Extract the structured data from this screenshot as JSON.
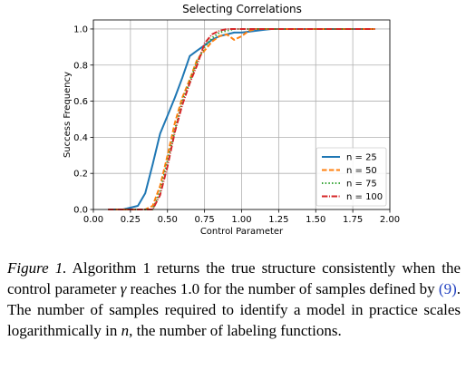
{
  "chart_data": {
    "type": "line",
    "title": "Selecting Correlations",
    "xlabel": "Control Parameter",
    "ylabel": "Success Frequency",
    "xlim": [
      0.0,
      2.0
    ],
    "ylim": [
      0.0,
      1.05
    ],
    "xticks": [
      "0.00",
      "0.25",
      "0.50",
      "0.75",
      "1.00",
      "1.25",
      "1.50",
      "1.75",
      "2.00"
    ],
    "yticks": [
      "0.0",
      "0.2",
      "0.4",
      "0.6",
      "0.8",
      "1.0"
    ],
    "grid": true,
    "legend_position": "lower-right",
    "x": [
      0.1,
      0.2,
      0.3,
      0.35,
      0.4,
      0.45,
      0.5,
      0.55,
      0.6,
      0.65,
      0.7,
      0.75,
      0.8,
      0.85,
      0.9,
      0.95,
      1.0,
      1.05,
      1.1,
      1.15,
      1.2,
      1.25,
      1.3,
      1.4,
      1.5,
      1.6,
      1.7,
      1.8,
      1.9
    ],
    "series": [
      {
        "name": "n = 25",
        "color": "#1f77b4",
        "dash": "solid",
        "values": [
          0.0,
          0.0,
          0.02,
          0.09,
          0.25,
          0.42,
          0.52,
          0.62,
          0.73,
          0.85,
          0.88,
          0.91,
          0.94,
          0.96,
          0.97,
          0.98,
          0.98,
          0.985,
          0.99,
          0.995,
          1.0,
          1.0,
          1.0,
          1.0,
          1.0,
          1.0,
          1.0,
          1.0,
          1.0
        ]
      },
      {
        "name": "n = 50",
        "color": "#ff7f0e",
        "dash": "dashed",
        "values": [
          0.0,
          0.0,
          0.0,
          0.0,
          0.02,
          0.13,
          0.3,
          0.48,
          0.62,
          0.72,
          0.83,
          0.88,
          0.93,
          0.96,
          0.97,
          0.94,
          0.96,
          0.99,
          1.0,
          1.0,
          1.0,
          1.0,
          1.0,
          1.0,
          1.0,
          1.0,
          1.0,
          1.0,
          1.0
        ]
      },
      {
        "name": "n = 75",
        "color": "#2ca02c",
        "dash": "dotted",
        "values": [
          0.0,
          0.0,
          0.0,
          0.0,
          0.0,
          0.1,
          0.27,
          0.44,
          0.6,
          0.71,
          0.82,
          0.9,
          0.95,
          0.98,
          0.99,
          1.0,
          1.0,
          1.0,
          1.0,
          1.0,
          1.0,
          1.0,
          1.0,
          1.0,
          1.0,
          1.0,
          1.0,
          1.0,
          1.0
        ]
      },
      {
        "name": "n = 100",
        "color": "#d62728",
        "dash": "dashdot",
        "values": [
          0.0,
          0.0,
          0.0,
          0.0,
          0.0,
          0.08,
          0.24,
          0.43,
          0.58,
          0.7,
          0.8,
          0.92,
          0.97,
          0.99,
          1.0,
          1.0,
          1.0,
          1.0,
          1.0,
          1.0,
          1.0,
          1.0,
          1.0,
          1.0,
          1.0,
          1.0,
          1.0,
          1.0,
          1.0
        ]
      }
    ]
  },
  "caption": {
    "label": "Figure 1.",
    "text_1": " Algorithm 1 returns the true structure consistently when the control parameter ",
    "gamma": "γ",
    "text_2": " reaches 1.0 for the number of samples defined by ",
    "ref": "(9)",
    "text_3": ".  The number of samples required to identify a model in practice scales logarithmically in ",
    "n": "n",
    "text_4": ", the number of labeling functions."
  }
}
